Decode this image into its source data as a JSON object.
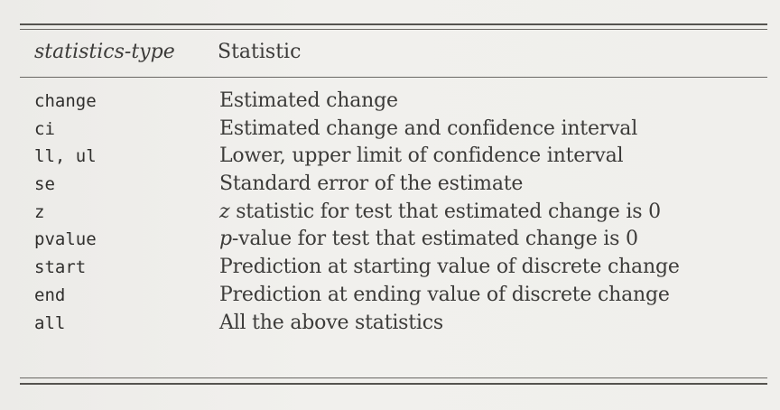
{
  "table": {
    "header": {
      "col1": "statistics-type",
      "col2": "Statistic"
    },
    "rows": [
      {
        "code": "change",
        "lead": "",
        "desc": "Estimated change"
      },
      {
        "code": "ci",
        "lead": "",
        "desc": "Estimated change and confidence interval"
      },
      {
        "code": "ll, ul",
        "lead": "",
        "desc": "Lower, upper limit of confidence interval"
      },
      {
        "code": "se",
        "lead": "",
        "desc": "Standard error of the estimate"
      },
      {
        "code": "z",
        "lead": "z",
        "desc": " statistic for test that estimated change is 0"
      },
      {
        "code": "pvalue",
        "lead": "p",
        "desc": "-value for test that estimated change is 0"
      },
      {
        "code": "start",
        "lead": "",
        "desc": "Prediction at starting value of discrete change"
      },
      {
        "code": "end",
        "lead": "",
        "desc": "Prediction at ending value of discrete change"
      },
      {
        "code": "all",
        "lead": "",
        "desc": "All the above statistics"
      }
    ]
  }
}
